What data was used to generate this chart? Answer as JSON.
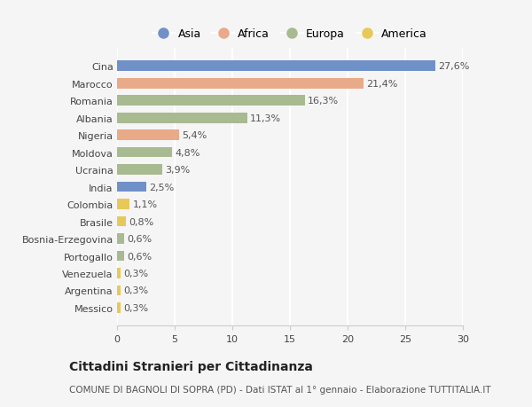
{
  "categories": [
    "Cina",
    "Marocco",
    "Romania",
    "Albania",
    "Nigeria",
    "Moldova",
    "Ucraina",
    "India",
    "Colombia",
    "Brasile",
    "Bosnia-Erzegovina",
    "Portogallo",
    "Venezuela",
    "Argentina",
    "Messico"
  ],
  "values": [
    27.6,
    21.4,
    16.3,
    11.3,
    5.4,
    4.8,
    3.9,
    2.5,
    1.1,
    0.8,
    0.6,
    0.6,
    0.3,
    0.3,
    0.3
  ],
  "labels": [
    "27,6%",
    "21,4%",
    "16,3%",
    "11,3%",
    "5,4%",
    "4,8%",
    "3,9%",
    "2,5%",
    "1,1%",
    "0,8%",
    "0,6%",
    "0,6%",
    "0,3%",
    "0,3%",
    "0,3%"
  ],
  "continents": [
    "Asia",
    "Africa",
    "Europa",
    "Europa",
    "Africa",
    "Europa",
    "Europa",
    "Asia",
    "America",
    "America",
    "Europa",
    "Europa",
    "America",
    "America",
    "America"
  ],
  "continent_colors": {
    "Asia": "#7090c8",
    "Africa": "#e8aa88",
    "Europa": "#a8ba90",
    "America": "#e8c858"
  },
  "legend_order": [
    "Asia",
    "Africa",
    "Europa",
    "America"
  ],
  "title": "Cittadini Stranieri per Cittadinanza",
  "subtitle": "COMUNE DI BAGNOLI DI SOPRA (PD) - Dati ISTAT al 1° gennaio - Elaborazione TUTTITALIA.IT",
  "xlim": [
    0,
    30
  ],
  "xticks": [
    0,
    5,
    10,
    15,
    20,
    25,
    30
  ],
  "background_color": "#f5f5f5",
  "bar_height": 0.6,
  "title_fontsize": 10,
  "subtitle_fontsize": 7.5,
  "tick_fontsize": 8,
  "label_fontsize": 8,
  "legend_fontsize": 9
}
